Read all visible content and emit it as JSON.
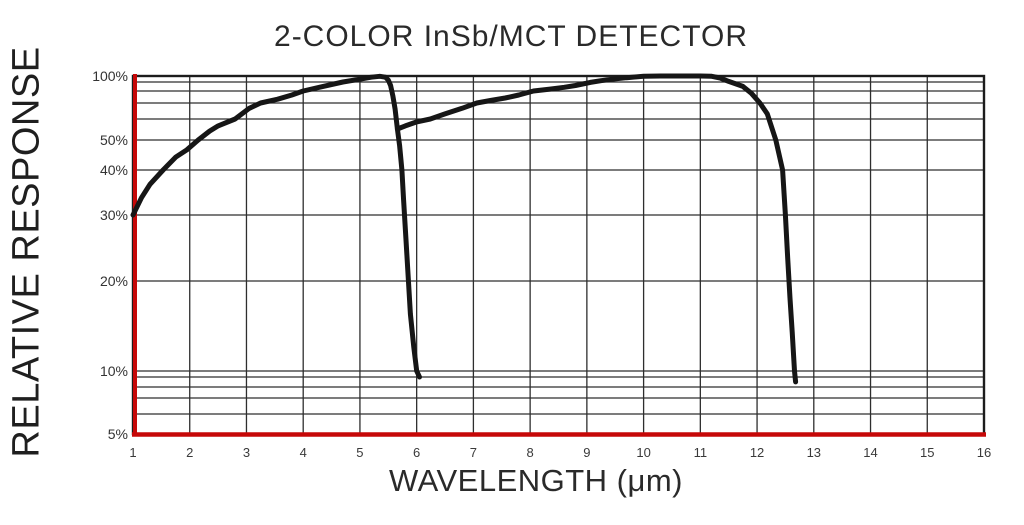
{
  "chart_data": {
    "type": "line",
    "title": "2-COLOR InSb/MCT DETECTOR",
    "xlabel": "WAVELENGTH (μm)",
    "ylabel": "RELATIVE RESPONSE",
    "x_ticks": [
      1,
      2,
      3,
      4,
      5,
      6,
      7,
      8,
      9,
      10,
      11,
      12,
      13,
      14,
      15,
      16
    ],
    "xlim": [
      1,
      16
    ],
    "ylim_percent": [
      5,
      100
    ],
    "y_scale": "log",
    "y_tick_labels": [
      "100%",
      "50%",
      "40%",
      "30%",
      "20%",
      "10%",
      "5%"
    ],
    "y_tick_values": [
      100,
      50,
      40,
      30,
      20,
      10,
      5
    ],
    "y_minor_gridlines": [
      90,
      80,
      70,
      60,
      9,
      8,
      7,
      6
    ],
    "grid": true,
    "axis_color": "#c60808",
    "grid_color": "#2e2e2e",
    "curve_color": "#161616",
    "series": [
      {
        "name": "InSb",
        "points": [
          [
            1.0,
            30
          ],
          [
            1.15,
            33.5
          ],
          [
            1.3,
            36.5
          ],
          [
            1.53,
            40
          ],
          [
            1.75,
            44
          ],
          [
            1.95,
            46.5
          ],
          [
            2.15,
            50
          ],
          [
            2.35,
            54
          ],
          [
            2.5,
            56.5
          ],
          [
            2.8,
            60
          ],
          [
            3.05,
            66.5
          ],
          [
            3.25,
            70
          ],
          [
            3.55,
            73
          ],
          [
            3.8,
            76.5
          ],
          [
            4.0,
            80
          ],
          [
            4.35,
            85
          ],
          [
            4.7,
            90
          ],
          [
            5.0,
            94.5
          ],
          [
            5.2,
            98
          ],
          [
            5.35,
            99.5
          ],
          [
            5.45,
            98
          ],
          [
            5.5,
            93
          ],
          [
            5.54,
            86
          ],
          [
            5.58,
            76
          ],
          [
            5.62,
            66
          ],
          [
            5.66,
            55
          ],
          [
            5.7,
            48
          ],
          [
            5.74,
            40
          ],
          [
            5.77,
            33
          ],
          [
            5.81,
            26
          ],
          [
            5.85,
            20.5
          ],
          [
            5.89,
            15.5
          ],
          [
            5.95,
            12
          ],
          [
            6.0,
            10
          ],
          [
            6.05,
            9
          ]
        ]
      },
      {
        "name": "MCT",
        "points": [
          [
            5.66,
            55
          ],
          [
            5.8,
            56.5
          ],
          [
            6.0,
            58.5
          ],
          [
            6.24,
            60
          ],
          [
            6.5,
            63
          ],
          [
            6.8,
            66.5
          ],
          [
            7.06,
            70
          ],
          [
            7.3,
            72
          ],
          [
            7.56,
            74
          ],
          [
            7.8,
            76.5
          ],
          [
            8.06,
            80
          ],
          [
            8.35,
            82
          ],
          [
            8.6,
            84
          ],
          [
            8.8,
            86
          ],
          [
            9.06,
            89.5
          ],
          [
            9.25,
            92
          ],
          [
            9.45,
            94.5
          ],
          [
            9.7,
            97
          ],
          [
            10.0,
            99.5
          ],
          [
            10.3,
            100
          ],
          [
            10.7,
            100
          ],
          [
            11.0,
            100
          ],
          [
            11.2,
            99.5
          ],
          [
            11.35,
            96.5
          ],
          [
            11.5,
            91
          ],
          [
            11.75,
            85
          ],
          [
            11.9,
            78
          ],
          [
            12.05,
            70
          ],
          [
            12.18,
            63
          ],
          [
            12.33,
            50
          ],
          [
            12.45,
            40
          ],
          [
            12.5,
            30
          ],
          [
            12.54,
            23
          ],
          [
            12.58,
            17.5
          ],
          [
            12.62,
            13.5
          ],
          [
            12.66,
            10
          ],
          [
            12.68,
            8.5
          ]
        ]
      }
    ]
  }
}
